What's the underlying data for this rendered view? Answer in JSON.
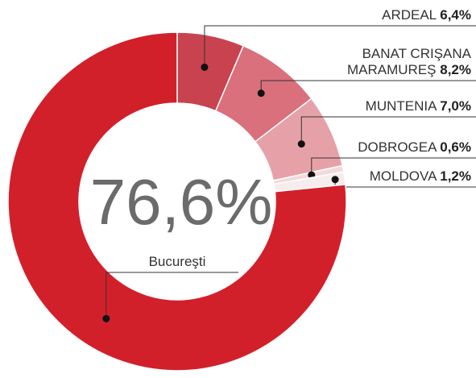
{
  "chart_data": {
    "type": "donut",
    "categories": [
      "ARDEAL",
      "BANAT CRIŞANA MARAMUREŞ",
      "MUNTENIA",
      "DOBROGEA",
      "MOLDOVA",
      "Bucureşti"
    ],
    "values": [
      6.4,
      8.2,
      7.0,
      0.6,
      1.2,
      76.6
    ],
    "value_labels": [
      "6,4%",
      "8,2%",
      "7,0%",
      "0,6%",
      "1,2%",
      "76,6%"
    ],
    "colors": [
      "#c8434f",
      "#d9707b",
      "#e6a1a8",
      "#f3d9dc",
      "#f7eced",
      "#d2202b"
    ]
  }
}
